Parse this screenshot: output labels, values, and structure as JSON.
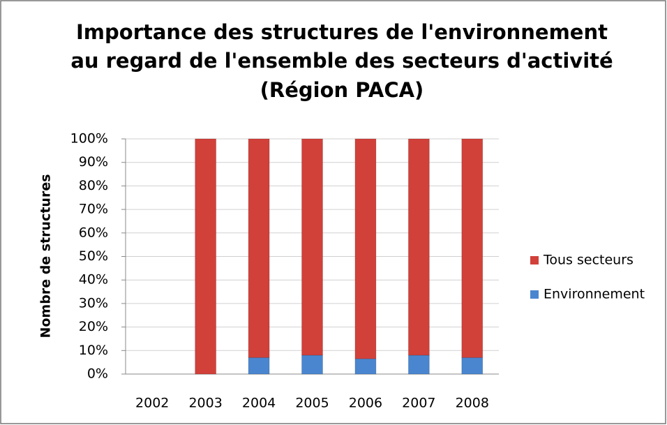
{
  "chart_data": {
    "type": "stacked_bar",
    "title": [
      "Importance des structures de l'environnement",
      "au regard de l'ensemble des secteurs d'activité",
      "(Région PACA)"
    ],
    "y_label": "Nombre de structures",
    "categories": [
      "2002",
      "2003",
      "2004",
      "2005",
      "2006",
      "2007",
      "2008"
    ],
    "series": [
      {
        "name": "Environnement",
        "color": "#4a86d0",
        "values": [
          null,
          0,
          7,
          8,
          6.5,
          8,
          7
        ]
      },
      {
        "name": "Tous secteurs",
        "color": "#d2403a",
        "values": [
          null,
          100,
          93,
          92,
          93.5,
          92,
          93
        ]
      }
    ],
    "ylim": [
      0,
      100
    ],
    "yticks": [
      {
        "value": 0,
        "label": "0%"
      },
      {
        "value": 10,
        "label": "10%"
      },
      {
        "value": 20,
        "label": "20%"
      },
      {
        "value": 30,
        "label": "30%"
      },
      {
        "value": 40,
        "label": "40%"
      },
      {
        "value": 50,
        "label": "50%"
      },
      {
        "value": 60,
        "label": "60%"
      },
      {
        "value": 70,
        "label": "70%"
      },
      {
        "value": 80,
        "label": "80%"
      },
      {
        "value": 90,
        "label": "90%"
      },
      {
        "value": 100,
        "label": "100%"
      }
    ],
    "grid": true,
    "legend": "right"
  }
}
